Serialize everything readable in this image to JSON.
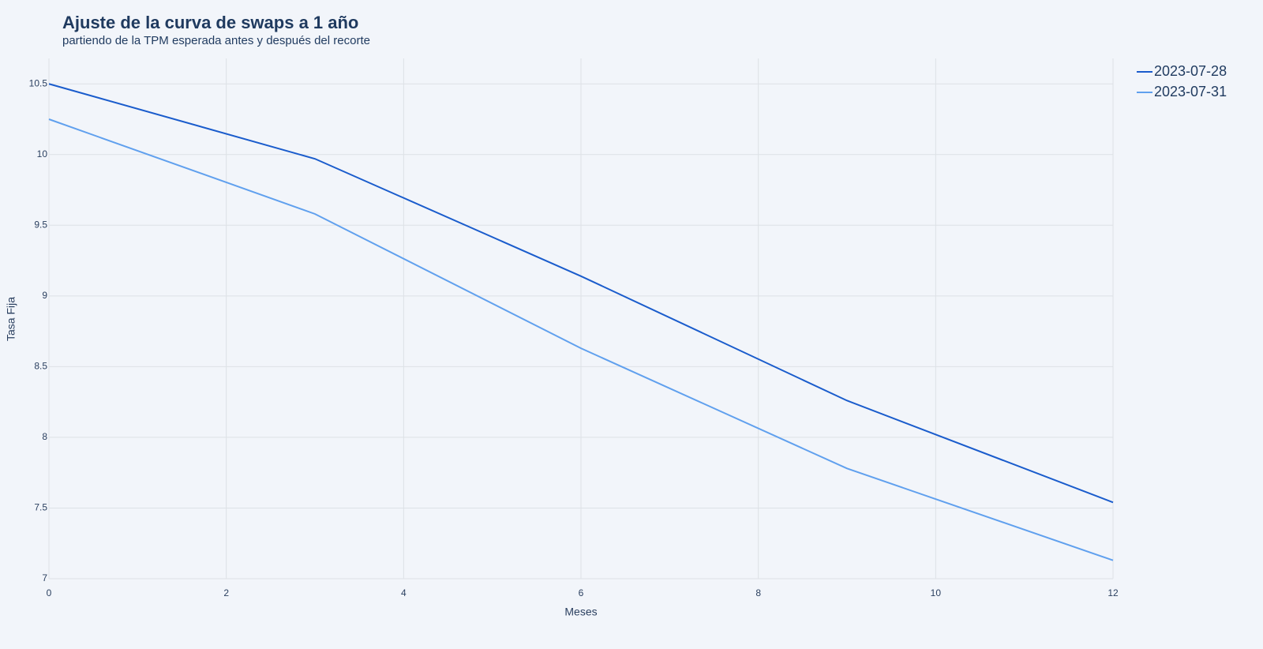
{
  "chart_data": {
    "type": "line",
    "title": "Ajuste de la curva de swaps a 1 año",
    "subtitle": "partiendo de la TPM esperada antes y después del recorte",
    "x_label": "Meses",
    "y_label": "Tasa Fija",
    "x": [
      0,
      3,
      6,
      9,
      12
    ],
    "series": [
      {
        "name": "2023-07-28",
        "color": "#1a5ccc",
        "values": [
          10.5,
          9.97,
          9.14,
          8.26,
          7.54
        ]
      },
      {
        "name": "2023-07-31",
        "color": "#60a0ee",
        "values": [
          10.25,
          9.58,
          8.63,
          7.78,
          7.13
        ]
      }
    ],
    "xlim": [
      0,
      12
    ],
    "xticks": [
      0,
      2,
      4,
      6,
      8,
      10,
      12
    ],
    "ylim": [
      7,
      10.68
    ],
    "yticks": [
      7,
      7.5,
      8,
      8.5,
      9,
      9.5,
      10,
      10.5
    ],
    "grid": true,
    "legend": "top-right"
  }
}
